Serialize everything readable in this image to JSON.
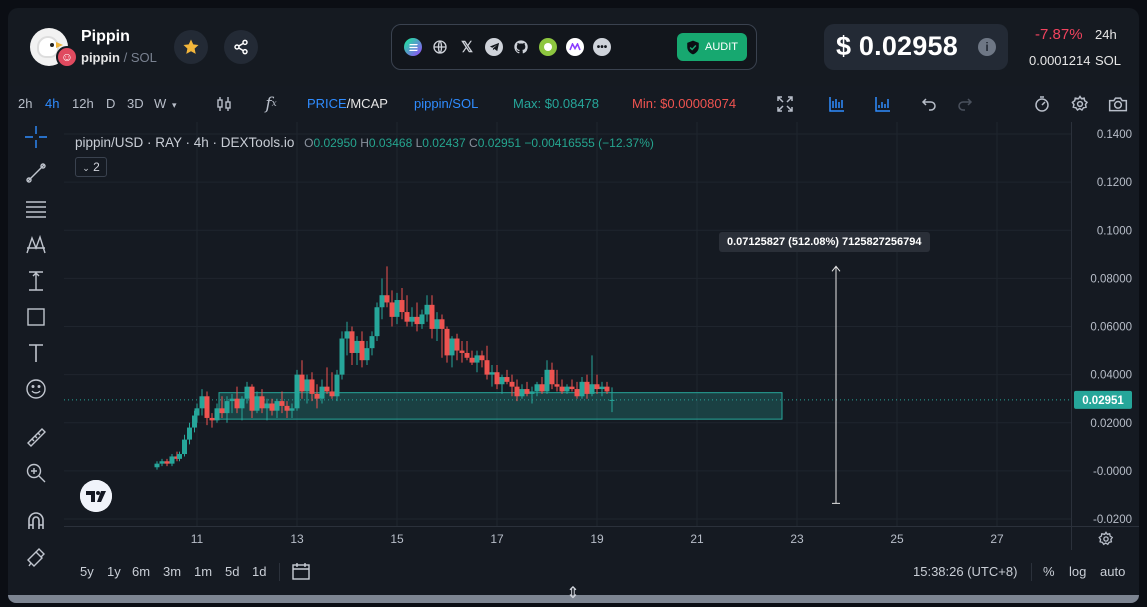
{
  "token": {
    "name": "Pippin",
    "symbol": "pippin",
    "separator": "/",
    "chain": "SOL"
  },
  "header": {
    "audit_label": "AUDIT",
    "price": "$ 0.02958",
    "change_24h": "-7.87%",
    "change_period": "24h",
    "price_sol": "0.0001214",
    "price_sol_unit": "SOL",
    "social_icons": [
      "solana-icon",
      "website-icon",
      "x-icon",
      "telegram-icon",
      "github-icon",
      "coingecko-icon",
      "coinmarketcap-icon",
      "more-icon"
    ]
  },
  "toolbar": {
    "intervals": [
      "2h",
      "4h",
      "12h",
      "D",
      "3D",
      "W"
    ],
    "active_interval": "4h",
    "price_label": "PRICE",
    "mcap_label": "/MCAP",
    "pair_label": "pippin/SOL",
    "max_label": "Max: $0.08478",
    "min_label": "Min: $0.00008074"
  },
  "legend": {
    "title": "pippin/USD · RAY · 4h · DEXTools.io",
    "o_label": "O",
    "o_value": "0.02950",
    "h_label": "H",
    "h_value": "0.03468",
    "l_label": "L",
    "l_value": "0.02437",
    "c_label": "C",
    "c_value": "0.02951",
    "change": "−0.00416555 (−12.37%)",
    "indicator_count": "2"
  },
  "measure_tooltip": "0.07125827 (512.08%) 7125827256794",
  "range_buttons": [
    "5y",
    "1y",
    "6m",
    "3m",
    "1m",
    "5d",
    "1d"
  ],
  "status": {
    "clock": "15:38:26 (UTC+8)",
    "percent": "%",
    "log": "log",
    "auto": "auto"
  },
  "colors": {
    "up": "#26a69a",
    "down": "#ef5350",
    "accent": "#2f8cff",
    "max": "#26a69a",
    "min": "#ef5350"
  },
  "chart_data": {
    "type": "candlestick",
    "y_ticks": [
      "0.1400",
      "0.1200",
      "0.1000",
      "0.08000",
      "0.06000",
      "0.04000",
      "0.02000",
      "-0.0000",
      "-0.0200"
    ],
    "x_ticks": [
      "11",
      "13",
      "15",
      "17",
      "19",
      "21",
      "23",
      "25",
      "27"
    ],
    "ylim": [
      -0.02,
      0.14
    ],
    "last_price_label": "0.02951",
    "candles": [
      [
        10.2,
        0.0015,
        0.004,
        0.0005,
        0.003
      ],
      [
        10.3,
        0.003,
        0.005,
        0.002,
        0.004
      ],
      [
        10.4,
        0.004,
        0.005,
        0.002,
        0.003
      ],
      [
        10.5,
        0.003,
        0.007,
        0.002,
        0.006
      ],
      [
        10.6,
        0.006,
        0.008,
        0.004,
        0.005
      ],
      [
        10.65,
        0.005,
        0.008,
        0.004,
        0.007
      ],
      [
        10.75,
        0.007,
        0.015,
        0.006,
        0.013
      ],
      [
        10.85,
        0.013,
        0.02,
        0.011,
        0.018
      ],
      [
        10.95,
        0.018,
        0.025,
        0.016,
        0.023
      ],
      [
        11.0,
        0.023,
        0.028,
        0.02,
        0.026
      ],
      [
        11.1,
        0.026,
        0.034,
        0.023,
        0.031
      ],
      [
        11.2,
        0.031,
        0.033,
        0.019,
        0.022
      ],
      [
        11.3,
        0.022,
        0.024,
        0.018,
        0.021
      ],
      [
        11.4,
        0.021,
        0.028,
        0.02,
        0.026
      ],
      [
        11.5,
        0.026,
        0.031,
        0.022,
        0.024
      ],
      [
        11.6,
        0.024,
        0.031,
        0.02,
        0.029
      ],
      [
        11.7,
        0.029,
        0.032,
        0.024,
        0.03
      ],
      [
        11.8,
        0.03,
        0.035,
        0.024,
        0.026
      ],
      [
        11.9,
        0.026,
        0.031,
        0.021,
        0.03
      ],
      [
        12.0,
        0.03,
        0.037,
        0.028,
        0.035
      ],
      [
        12.1,
        0.035,
        0.036,
        0.022,
        0.025
      ],
      [
        12.2,
        0.025,
        0.033,
        0.024,
        0.031
      ],
      [
        12.3,
        0.031,
        0.034,
        0.024,
        0.026
      ],
      [
        12.4,
        0.026,
        0.03,
        0.021,
        0.028
      ],
      [
        12.5,
        0.028,
        0.03,
        0.023,
        0.025
      ],
      [
        12.6,
        0.025,
        0.03,
        0.022,
        0.029
      ],
      [
        12.7,
        0.029,
        0.033,
        0.024,
        0.027
      ],
      [
        12.8,
        0.027,
        0.029,
        0.022,
        0.025
      ],
      [
        12.9,
        0.025,
        0.028,
        0.022,
        0.026
      ],
      [
        13.0,
        0.026,
        0.042,
        0.025,
        0.04
      ],
      [
        13.1,
        0.04,
        0.046,
        0.03,
        0.033
      ],
      [
        13.2,
        0.033,
        0.04,
        0.028,
        0.038
      ],
      [
        13.3,
        0.038,
        0.041,
        0.029,
        0.032
      ],
      [
        13.4,
        0.032,
        0.036,
        0.026,
        0.03
      ],
      [
        13.5,
        0.03,
        0.038,
        0.028,
        0.035
      ],
      [
        13.6,
        0.035,
        0.043,
        0.032,
        0.033
      ],
      [
        13.7,
        0.033,
        0.041,
        0.03,
        0.031
      ],
      [
        13.8,
        0.031,
        0.042,
        0.029,
        0.04
      ],
      [
        13.9,
        0.04,
        0.058,
        0.038,
        0.055
      ],
      [
        14.0,
        0.055,
        0.062,
        0.048,
        0.058
      ],
      [
        14.1,
        0.058,
        0.06,
        0.044,
        0.049
      ],
      [
        14.2,
        0.049,
        0.056,
        0.044,
        0.054
      ],
      [
        14.3,
        0.054,
        0.058,
        0.043,
        0.046
      ],
      [
        14.4,
        0.046,
        0.054,
        0.044,
        0.051
      ],
      [
        14.5,
        0.051,
        0.058,
        0.048,
        0.056
      ],
      [
        14.6,
        0.056,
        0.07,
        0.054,
        0.068
      ],
      [
        14.7,
        0.068,
        0.08,
        0.063,
        0.073
      ],
      [
        14.8,
        0.073,
        0.085,
        0.068,
        0.07
      ],
      [
        14.9,
        0.07,
        0.075,
        0.06,
        0.064
      ],
      [
        15.0,
        0.064,
        0.074,
        0.061,
        0.071
      ],
      [
        15.1,
        0.071,
        0.076,
        0.063,
        0.066
      ],
      [
        15.2,
        0.066,
        0.073,
        0.06,
        0.062
      ],
      [
        15.3,
        0.062,
        0.068,
        0.06,
        0.064
      ],
      [
        15.4,
        0.064,
        0.07,
        0.058,
        0.061
      ],
      [
        15.5,
        0.061,
        0.067,
        0.059,
        0.065
      ],
      [
        15.6,
        0.065,
        0.073,
        0.062,
        0.069
      ],
      [
        15.7,
        0.069,
        0.073,
        0.055,
        0.059
      ],
      [
        15.8,
        0.059,
        0.066,
        0.054,
        0.063
      ],
      [
        15.9,
        0.063,
        0.065,
        0.047,
        0.059
      ],
      [
        16.0,
        0.059,
        0.06,
        0.045,
        0.048
      ],
      [
        16.1,
        0.048,
        0.056,
        0.043,
        0.055
      ],
      [
        16.2,
        0.055,
        0.057,
        0.046,
        0.05
      ],
      [
        16.3,
        0.05,
        0.054,
        0.045,
        0.049
      ],
      [
        16.4,
        0.049,
        0.054,
        0.046,
        0.047
      ],
      [
        16.5,
        0.047,
        0.05,
        0.044,
        0.045
      ],
      [
        16.6,
        0.045,
        0.05,
        0.041,
        0.048
      ],
      [
        16.7,
        0.048,
        0.05,
        0.043,
        0.046
      ],
      [
        16.8,
        0.046,
        0.052,
        0.038,
        0.04
      ],
      [
        16.9,
        0.04,
        0.044,
        0.035,
        0.041
      ],
      [
        17.0,
        0.041,
        0.044,
        0.034,
        0.036
      ],
      [
        17.1,
        0.036,
        0.04,
        0.032,
        0.039
      ],
      [
        17.2,
        0.039,
        0.042,
        0.036,
        0.037
      ],
      [
        17.3,
        0.037,
        0.04,
        0.031,
        0.035
      ],
      [
        17.4,
        0.035,
        0.038,
        0.029,
        0.031
      ],
      [
        17.5,
        0.031,
        0.036,
        0.03,
        0.034
      ],
      [
        17.6,
        0.034,
        0.037,
        0.031,
        0.032
      ],
      [
        17.7,
        0.032,
        0.035,
        0.028,
        0.033
      ],
      [
        17.8,
        0.033,
        0.037,
        0.031,
        0.036
      ],
      [
        17.9,
        0.036,
        0.039,
        0.032,
        0.033
      ],
      [
        18.0,
        0.033,
        0.046,
        0.032,
        0.042
      ],
      [
        18.1,
        0.042,
        0.045,
        0.034,
        0.036
      ],
      [
        18.2,
        0.036,
        0.042,
        0.033,
        0.035
      ],
      [
        18.3,
        0.035,
        0.038,
        0.032,
        0.033
      ],
      [
        18.4,
        0.033,
        0.036,
        0.032,
        0.035
      ],
      [
        18.5,
        0.035,
        0.038,
        0.033,
        0.034
      ],
      [
        18.6,
        0.034,
        0.037,
        0.03,
        0.031
      ],
      [
        18.7,
        0.031,
        0.039,
        0.03,
        0.037
      ],
      [
        18.8,
        0.037,
        0.04,
        0.03,
        0.032
      ],
      [
        18.9,
        0.032,
        0.048,
        0.031,
        0.036
      ],
      [
        19.0,
        0.036,
        0.04,
        0.032,
        0.034
      ],
      [
        19.1,
        0.034,
        0.037,
        0.031,
        0.035
      ],
      [
        19.2,
        0.035,
        0.037,
        0.032,
        0.033
      ],
      [
        19.3,
        0.0295,
        0.0347,
        0.0244,
        0.0295
      ]
    ]
  }
}
